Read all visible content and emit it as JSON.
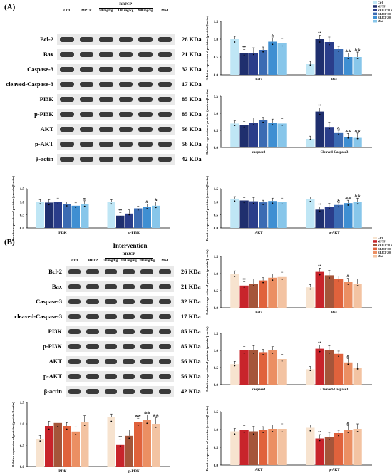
{
  "panelA": {
    "letter": "(A)",
    "lanes": [
      "Ctrl",
      "MPTP",
      "50 mg/kg",
      "100 mg/kg",
      "200 mg/kg",
      "Mad"
    ],
    "group": "RRJCP",
    "rows": [
      "Bcl-2",
      "Bax",
      "Caspase-3",
      "cleaved-Caspase-3",
      "PI3K",
      "p-PI3K",
      "AKT",
      "p-AKT",
      "β-actin"
    ],
    "kda": [
      "26 KDa",
      "21 KDa",
      "32 KDa",
      "17 KDa",
      "85 KDa",
      "85 KDa",
      "56 KDa",
      "56 KDa",
      "42 KDa"
    ],
    "legend": [
      "Ctrl",
      "MPTP",
      "RRJCP 50 mg/kg",
      "RRJCP 100 mg/kg",
      "RRJCP 200 mg/kg",
      "Mad"
    ],
    "colors": [
      "#bfe6f5",
      "#1f2f6e",
      "#2a3d8a",
      "#3b6bb3",
      "#3f8fd2",
      "#87c6ea"
    ]
  },
  "panelB": {
    "letter": "(B)",
    "intervention": "Intervention",
    "lanes": [
      "Ctrl",
      "MPTP",
      "50 mg/kg",
      "100 mg/kg",
      "200 mg/kg",
      "Mad"
    ],
    "group": "RRJCP",
    "rows": [
      "Bcl-2",
      "Bax",
      "Caspase-3",
      "cleaved-Caspase-3",
      "PI3K",
      "p-PI3K",
      "AKT",
      "p-AKT",
      "β-actin"
    ],
    "kda": [
      "26 KDa",
      "21 KDa",
      "32 KDa",
      "17 KDa",
      "85 KDa",
      "85 KDa",
      "56 KDa",
      "56 KDa",
      "42 KDa"
    ],
    "legend": [
      "Ctrl",
      "MPTP",
      "RRJCP 50 mg/kg",
      "RRJCP 100 mg/kg",
      "RRJCP 200 mg/kg",
      "Mad"
    ],
    "colors": [
      "#f7e3cf",
      "#c8242b",
      "#a5553a",
      "#e0623c",
      "#eb8f63",
      "#f3c3a2"
    ]
  },
  "ylabel": "Relative expression of proteins (protein/β-actin)",
  "chart_data": [
    {
      "panel": "A",
      "type": "bar",
      "categories": [
        "Bcl2",
        "Bax"
      ],
      "ylim": [
        0,
        1.5
      ],
      "yticks": [
        "0.0",
        "0.5",
        "1.0",
        "1.5"
      ],
      "series": [
        {
          "name": "Ctrl",
          "values": [
            1.0,
            0.3
          ]
        },
        {
          "name": "MPTP",
          "values": [
            0.6,
            1.0
          ]
        },
        {
          "name": "RRJCP 50 mg/kg",
          "values": [
            0.62,
            0.92
          ]
        },
        {
          "name": "RRJCP 100 mg/kg",
          "values": [
            0.7,
            0.72
          ]
        },
        {
          "name": "RRJCP 200 mg/kg",
          "values": [
            0.93,
            0.5
          ]
        },
        {
          "name": "Mad",
          "values": [
            0.88,
            0.5
          ]
        }
      ],
      "annotations": [
        [
          "",
          "**",
          "",
          "",
          "&",
          ""
        ],
        [
          "",
          "**",
          "",
          "",
          "&&",
          "&&"
        ]
      ]
    },
    {
      "panel": "A",
      "type": "bar",
      "categories": [
        "caspase3",
        "Cleaved-Caspase3"
      ],
      "ylim": [
        0,
        1.5
      ],
      "yticks": [
        "0.0",
        "0.5",
        "1.0",
        "1.5"
      ],
      "series": [
        {
          "name": "Ctrl",
          "values": [
            0.7,
            0.25
          ]
        },
        {
          "name": "MPTP",
          "values": [
            0.65,
            1.05
          ]
        },
        {
          "name": "RRJCP 50 mg/kg",
          "values": [
            0.72,
            0.6
          ]
        },
        {
          "name": "RRJCP 100 mg/kg",
          "values": [
            0.8,
            0.42
          ]
        },
        {
          "name": "RRJCP 200 mg/kg",
          "values": [
            0.72,
            0.3
          ]
        },
        {
          "name": "Mad",
          "values": [
            0.7,
            0.28
          ]
        }
      ],
      "annotations": [
        [
          "",
          "",
          "",
          "",
          "",
          ""
        ],
        [
          "",
          "**",
          "",
          "&",
          "&&",
          "&&"
        ]
      ]
    },
    {
      "panel": "A",
      "type": "bar",
      "categories": [
        "PI3K",
        "p-PI3K"
      ],
      "ylim": [
        0,
        1.5
      ],
      "yticks": [
        "0.0",
        "0.5",
        "1.0",
        "1.5"
      ],
      "series": [
        {
          "name": "Ctrl",
          "values": [
            1.0,
            1.0
          ]
        },
        {
          "name": "MPTP",
          "values": [
            0.97,
            0.47
          ]
        },
        {
          "name": "RRJCP 50 mg/kg",
          "values": [
            1.0,
            0.55
          ]
        },
        {
          "name": "RRJCP 100 mg/kg",
          "values": [
            0.92,
            0.75
          ]
        },
        {
          "name": "RRJCP 200 mg/kg",
          "values": [
            0.85,
            0.8
          ]
        },
        {
          "name": "Mad",
          "values": [
            0.9,
            0.85
          ]
        }
      ],
      "annotations": [
        [
          "",
          "",
          "",
          "",
          "",
          "ns"
        ],
        [
          "",
          "**",
          "",
          "",
          "&",
          "&"
        ]
      ]
    },
    {
      "panel": "A",
      "type": "bar",
      "categories": [
        "AKT",
        "p-AKT"
      ],
      "ylim": [
        0,
        1.5
      ],
      "yticks": [
        "0.0",
        "0.5",
        "1.0",
        "1.5"
      ],
      "series": [
        {
          "name": "Ctrl",
          "values": [
            1.12,
            1.1
          ]
        },
        {
          "name": "MPTP",
          "values": [
            1.05,
            0.7
          ]
        },
        {
          "name": "RRJCP 50 mg/kg",
          "values": [
            1.02,
            0.8
          ]
        },
        {
          "name": "RRJCP 100 mg/kg",
          "values": [
            0.98,
            0.88
          ]
        },
        {
          "name": "RRJCP 200 mg/kg",
          "values": [
            1.03,
            0.95
          ]
        },
        {
          "name": "Mad",
          "values": [
            1.0,
            1.0
          ]
        }
      ],
      "annotations": [
        [
          "",
          "",
          "",
          "",
          "",
          ""
        ],
        [
          "",
          "**",
          "",
          "&",
          "&&",
          "&&"
        ]
      ]
    },
    {
      "panel": "B",
      "type": "bar",
      "categories": [
        "Bcl2",
        "Bax"
      ],
      "ylim": [
        0,
        1.5
      ],
      "yticks": [
        "0.0",
        "0.5",
        "1.0",
        "1.5"
      ],
      "series": [
        {
          "name": "Ctrl",
          "values": [
            1.0,
            0.6
          ]
        },
        {
          "name": "MPTP",
          "values": [
            0.65,
            1.05
          ]
        },
        {
          "name": "RRJCP 50 mg/kg",
          "values": [
            0.7,
            0.95
          ]
        },
        {
          "name": "RRJCP 100 mg/kg",
          "values": [
            0.8,
            0.85
          ]
        },
        {
          "name": "RRJCP 200 mg/kg",
          "values": [
            0.88,
            0.75
          ]
        },
        {
          "name": "Mad",
          "values": [
            0.9,
            0.7
          ]
        }
      ],
      "annotations": [
        [
          "",
          "**",
          "",
          "",
          "",
          ""
        ],
        [
          "",
          "**",
          "",
          "",
          "&",
          ""
        ]
      ]
    },
    {
      "panel": "B",
      "type": "bar",
      "categories": [
        "caspase3",
        "Cleaved-Caspase3"
      ],
      "ylim": [
        0,
        1.5
      ],
      "yticks": [
        "0.0",
        "0.5",
        "1.0",
        "1.5"
      ],
      "series": [
        {
          "name": "Ctrl",
          "values": [
            0.6,
            0.45
          ]
        },
        {
          "name": "MPTP",
          "values": [
            1.0,
            1.05
          ]
        },
        {
          "name": "RRJCP 50 mg/kg",
          "values": [
            1.0,
            1.0
          ]
        },
        {
          "name": "RRJCP 100 mg/kg",
          "values": [
            0.95,
            0.9
          ]
        },
        {
          "name": "RRJCP 200 mg/kg",
          "values": [
            1.0,
            0.65
          ]
        },
        {
          "name": "Mad",
          "values": [
            0.75,
            0.5
          ]
        }
      ],
      "annotations": [
        [
          "",
          "",
          "",
          "",
          "",
          ""
        ],
        [
          "",
          "**",
          "",
          "",
          "&",
          ""
        ]
      ]
    },
    {
      "panel": "B",
      "type": "bar",
      "categories": [
        "PI3K",
        "p-PI3K"
      ],
      "ylim": [
        0,
        1.5
      ],
      "yticks": [
        "0.0",
        "0.5",
        "1.0",
        "1.5"
      ],
      "series": [
        {
          "name": "Ctrl",
          "values": [
            0.65,
            1.15
          ]
        },
        {
          "name": "MPTP",
          "values": [
            0.95,
            0.52
          ]
        },
        {
          "name": "RRJCP 50 mg/kg",
          "values": [
            1.02,
            0.72
          ]
        },
        {
          "name": "RRJCP 100 mg/kg",
          "values": [
            0.95,
            1.05
          ]
        },
        {
          "name": "RRJCP 200 mg/kg",
          "values": [
            0.82,
            1.1
          ]
        },
        {
          "name": "Mad",
          "values": [
            1.05,
            1.0
          ]
        }
      ],
      "annotations": [
        [
          "",
          "",
          "",
          "",
          "",
          ""
        ],
        [
          "",
          "**",
          "",
          "&&",
          "&&",
          "&&"
        ]
      ]
    },
    {
      "panel": "B",
      "type": "bar",
      "categories": [
        "AKT",
        "p-AKT"
      ],
      "ylim": [
        0,
        1.5
      ],
      "yticks": [
        "0.0",
        "0.5",
        "1.0",
        "1.5"
      ],
      "series": [
        {
          "name": "Ctrl",
          "values": [
            0.95,
            1.05
          ]
        },
        {
          "name": "MPTP",
          "values": [
            1.0,
            0.75
          ]
        },
        {
          "name": "RRJCP 50 mg/kg",
          "values": [
            0.95,
            0.78
          ]
        },
        {
          "name": "RRJCP 100 mg/kg",
          "values": [
            1.0,
            0.9
          ]
        },
        {
          "name": "RRJCP 200 mg/kg",
          "values": [
            1.02,
            1.0
          ]
        },
        {
          "name": "Mad",
          "values": [
            1.02,
            1.02
          ]
        }
      ],
      "annotations": [
        [
          "",
          "",
          "",
          "",
          "",
          ""
        ],
        [
          "",
          "**",
          "",
          "",
          "&",
          ""
        ]
      ]
    }
  ]
}
